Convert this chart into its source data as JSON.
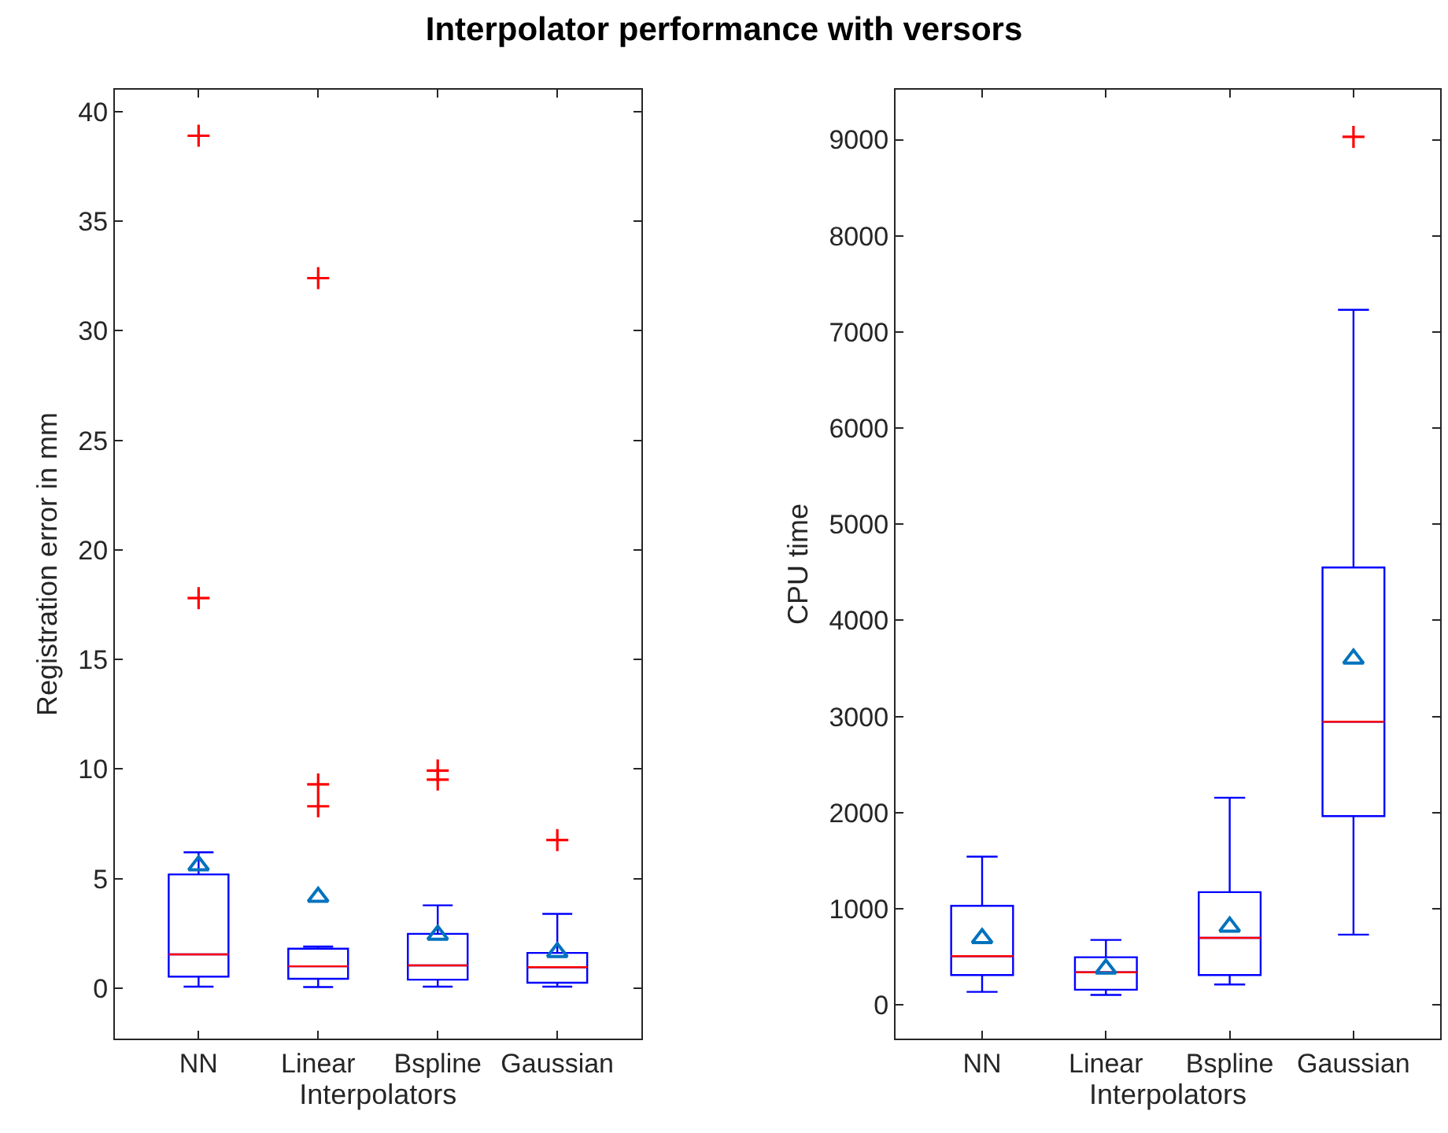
{
  "chart_data": [
    {
      "type": "box",
      "title": "Interpolator performance with versors",
      "xlabel": "Interpolators",
      "ylabel": "Registration error in mm",
      "categories": [
        "NN",
        "Linear",
        "Bspline",
        "Gaussian"
      ],
      "color": "#0000ff",
      "marker": "triangle",
      "ylim": [
        -2.3,
        41
      ],
      "yticks": [
        0,
        5,
        10,
        15,
        20,
        25,
        30,
        35,
        40
      ],
      "boxes": [
        {
          "low": 0.07,
          "q1": 0.53,
          "median": 1.54,
          "q3": 5.19,
          "high": 6.2,
          "mean": 5.6,
          "outliers": [
            17.8,
            38.9
          ]
        },
        {
          "low": 0.05,
          "q1": 0.43,
          "median": 1.0,
          "q3": 1.8,
          "high": 1.9,
          "mean": 4.16,
          "outliers": [
            8.3,
            9.3,
            32.4
          ]
        },
        {
          "low": 0.07,
          "q1": 0.39,
          "median": 1.04,
          "q3": 2.48,
          "high": 3.78,
          "mean": 2.43,
          "outliers": [
            9.52,
            9.93
          ]
        },
        {
          "low": 0.07,
          "q1": 0.25,
          "median": 0.96,
          "q3": 1.61,
          "high": 3.39,
          "mean": 1.64,
          "outliers": [
            6.76
          ]
        }
      ]
    },
    {
      "type": "box",
      "xlabel": "Interpolators",
      "ylabel": "CPU time",
      "categories": [
        "NN",
        "Linear",
        "Bspline",
        "Gaussian"
      ],
      "color": "#0000ff",
      "marker": "triangle",
      "ylim": [
        -350,
        9520
      ],
      "yticks": [
        0,
        1000,
        2000,
        3000,
        4000,
        5000,
        6000,
        7000,
        8000,
        9000
      ],
      "boxes": [
        {
          "low": 136,
          "q1": 311,
          "median": 507,
          "q3": 1031,
          "high": 1543,
          "mean": 693
        },
        {
          "low": 104,
          "q1": 158,
          "median": 339,
          "q3": 496,
          "high": 676,
          "mean": 376
        },
        {
          "low": 213,
          "q1": 311,
          "median": 698,
          "q3": 1173,
          "high": 2155,
          "mean": 813
        },
        {
          "low": 731,
          "q1": 1964,
          "median": 2946,
          "q3": 4550,
          "high": 7230,
          "mean": 3600,
          "outliers": [
            9030
          ]
        }
      ]
    }
  ]
}
